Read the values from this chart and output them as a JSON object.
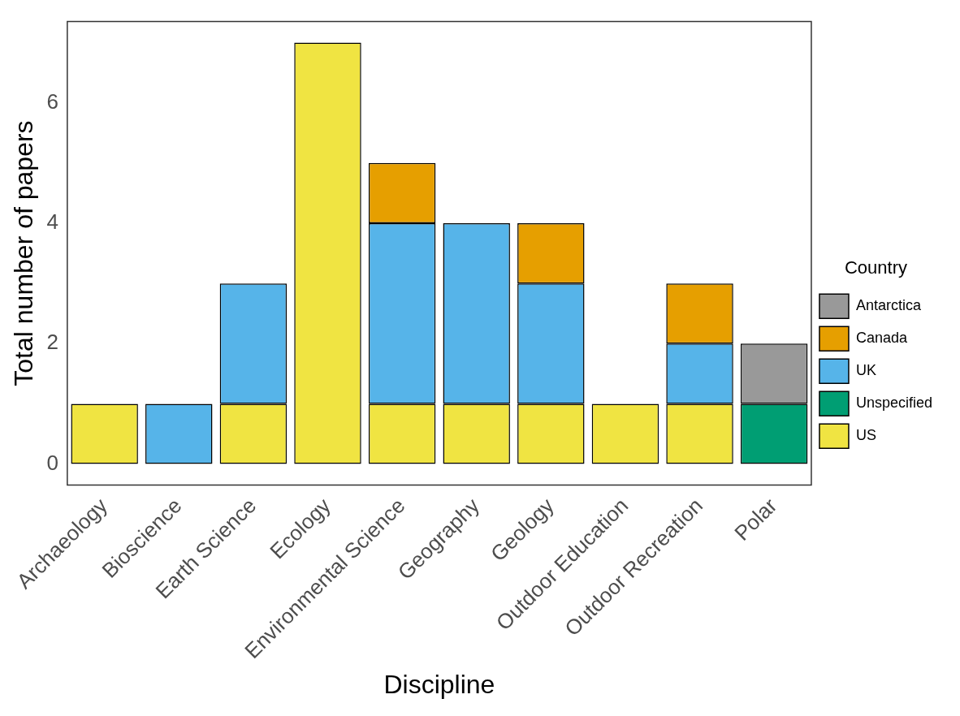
{
  "chart_data": {
    "type": "bar",
    "stacked": true,
    "xlabel": "Discipline",
    "ylabel": "Total number of papers",
    "legend_title": "Country",
    "legend": "right",
    "grid": false,
    "categories": [
      "Archaeology",
      "Bioscience",
      "Earth Science",
      "Ecology",
      "Environmental Science",
      "Geography",
      "Geology",
      "Outdoor Education",
      "Outdoor Recreation",
      "Polar"
    ],
    "ylim": [
      -0.35,
      7.35
    ],
    "yticks": [
      0,
      2,
      4,
      6
    ],
    "series": [
      {
        "name": "US",
        "color": "#f0e442",
        "values": [
          1,
          null,
          1,
          7,
          1,
          1,
          1,
          1,
          1,
          null
        ]
      },
      {
        "name": "Unspecified",
        "color": "#009e73",
        "values": [
          null,
          null,
          null,
          null,
          null,
          null,
          null,
          null,
          null,
          1
        ]
      },
      {
        "name": "UK",
        "color": "#56b4e9",
        "values": [
          null,
          1,
          2,
          null,
          3,
          3,
          2,
          null,
          1,
          null
        ]
      },
      {
        "name": "Canada",
        "color": "#e69f00",
        "values": [
          null,
          null,
          null,
          null,
          1,
          null,
          1,
          null,
          1,
          null
        ]
      },
      {
        "name": "Antarctica",
        "color": "#999999",
        "values": [
          null,
          null,
          null,
          null,
          null,
          null,
          null,
          null,
          null,
          1
        ]
      }
    ]
  }
}
